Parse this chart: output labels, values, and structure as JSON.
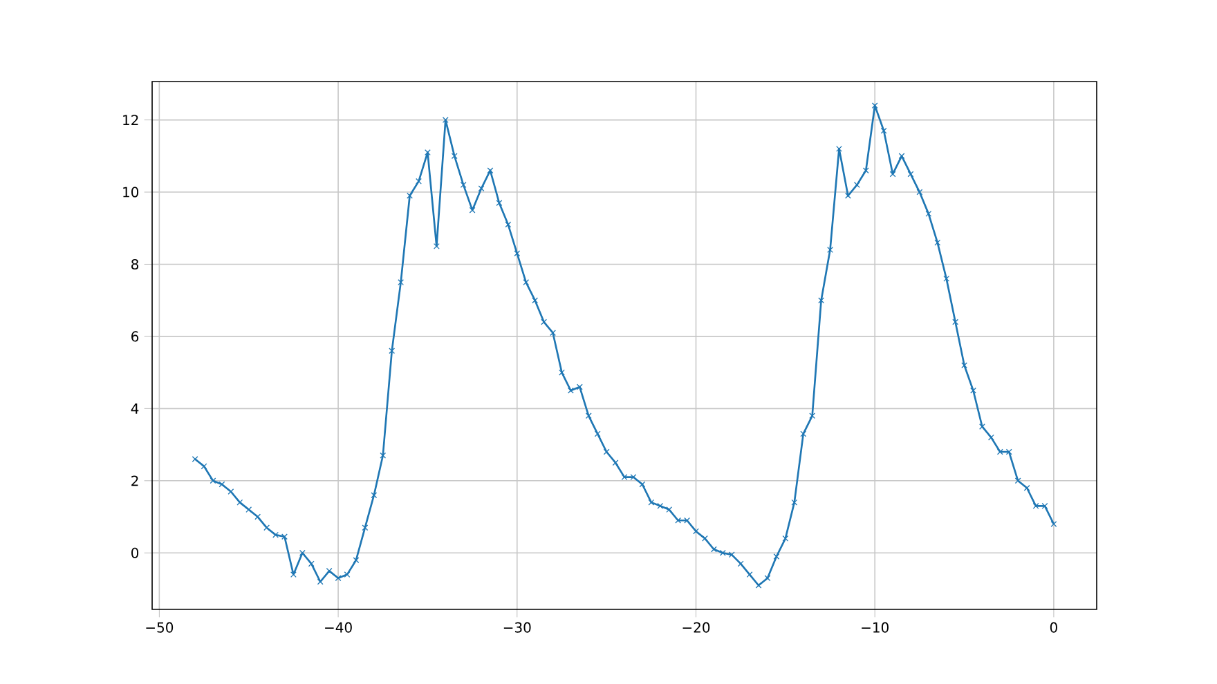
{
  "chart_data": {
    "type": "line",
    "x": [
      -48,
      -47.5,
      -47,
      -46.5,
      -46,
      -45.5,
      -45,
      -44.5,
      -44,
      -43.5,
      -43,
      -42.5,
      -42,
      -41.5,
      -41,
      -40.5,
      -40,
      -39.5,
      -39,
      -38.5,
      -38,
      -37.5,
      -37,
      -36.5,
      -36,
      -35.5,
      -35,
      -34.5,
      -34,
      -33.5,
      -33,
      -32.5,
      -32,
      -31.5,
      -31,
      -30.5,
      -30,
      -29.5,
      -29,
      -28.5,
      -28,
      -27.5,
      -27,
      -26.5,
      -26,
      -25.5,
      -25,
      -24.5,
      -24,
      -23.5,
      -23,
      -22.5,
      -22,
      -21.5,
      -21,
      -20.5,
      -20,
      -19.5,
      -19,
      -18.5,
      -18,
      -17.5,
      -17,
      -16.5,
      -16,
      -15.5,
      -15,
      -14.5,
      -14,
      -13.5,
      -13,
      -12.5,
      -12,
      -11.5,
      -11,
      -10.5,
      -10,
      -9.5,
      -9,
      -8.5,
      -8,
      -7.5,
      -7,
      -6.5,
      -6,
      -5.5,
      -5,
      -4.5,
      -4,
      -3.5,
      -3,
      -2.5,
      -2,
      -1.5,
      -1,
      -0.5,
      0
    ],
    "series": [
      {
        "color": "#1f77b4",
        "values": [
          2.6,
          2.4,
          2.0,
          1.9,
          1.7,
          1.4,
          1.2,
          1.0,
          0.7,
          0.5,
          0.45,
          -0.6,
          0.0,
          -0.3,
          -0.8,
          -0.5,
          -0.7,
          -0.6,
          -0.2,
          0.7,
          1.6,
          2.7,
          5.6,
          7.5,
          9.9,
          10.3,
          11.1,
          8.5,
          12.0,
          11.0,
          10.2,
          9.5,
          10.1,
          10.6,
          9.7,
          9.1,
          8.3,
          7.5,
          7.0,
          6.4,
          6.1,
          5.0,
          4.5,
          4.6,
          3.8,
          3.3,
          2.8,
          2.5,
          2.1,
          2.1,
          1.9,
          1.4,
          1.3,
          1.2,
          0.9,
          0.9,
          0.6,
          0.4,
          0.1,
          0.0,
          -0.05,
          -0.3,
          -0.6,
          -0.9,
          -0.7,
          -0.1,
          0.4,
          1.4,
          3.3,
          3.8,
          7.0,
          8.4,
          11.2,
          9.9,
          10.2,
          10.6,
          12.4,
          11.7,
          10.5,
          11.0,
          10.5,
          10.0,
          9.4,
          8.6,
          7.6,
          6.4,
          5.2,
          4.5,
          3.5,
          3.2,
          2.8,
          2.8,
          2.0,
          1.8,
          1.3,
          1.3,
          0.8
        ]
      }
    ],
    "xlim": [
      -50.4,
      2.4
    ],
    "ylim": [
      -1.565,
      13.065
    ],
    "xticks": [
      {
        "value": -50,
        "label": "−50"
      },
      {
        "value": -40,
        "label": "−40"
      },
      {
        "value": -30,
        "label": "−30"
      },
      {
        "value": -20,
        "label": "−20"
      },
      {
        "value": -10,
        "label": "−10"
      },
      0
    ],
    "yticks": [
      0,
      2,
      4,
      6,
      8,
      10,
      12
    ],
    "grid": true,
    "marker": "cross",
    "line_style": "solid"
  }
}
